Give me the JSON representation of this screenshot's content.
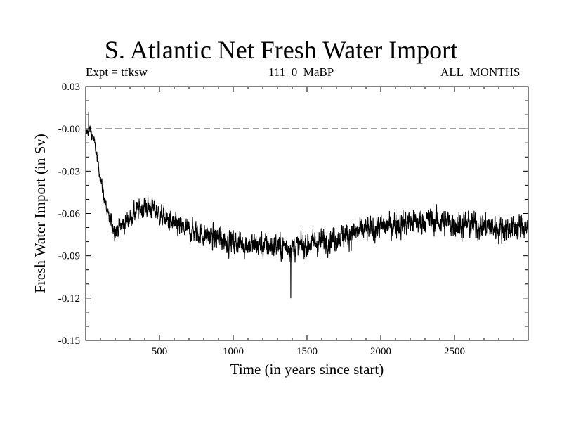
{
  "chart_data": {
    "type": "line",
    "title": "S. Atlantic Net Fresh Water Import",
    "subtitle_left": "Expt = tfksw",
    "subtitle_center": "111_0_MaBP",
    "subtitle_right": "ALL_MONTHS",
    "xlabel": "Time (in years since start)",
    "ylabel": "Fresh Water Import (in Sv)",
    "xlim": [
      0,
      3000
    ],
    "ylim": [
      -0.15,
      0.03
    ],
    "xticks": [
      500,
      1000,
      1500,
      2000,
      2500
    ],
    "xtick_labels": [
      "500",
      "1000",
      "1500",
      "2000",
      "2500"
    ],
    "yticks": [
      0.03,
      0.0,
      -0.03,
      -0.06,
      -0.09,
      -0.12,
      -0.15
    ],
    "ytick_labels": [
      "0.03",
      "-0.00",
      "-0.03",
      "-0.06",
      "-0.09",
      "-0.12",
      "-0.15"
    ],
    "reference_line": {
      "y": 0.0,
      "style": "dashed"
    },
    "series": [
      {
        "name": "Net Fresh Water Import",
        "mean_trend": {
          "x": [
            0,
            30,
            60,
            100,
            150,
            200,
            250,
            300,
            350,
            400,
            450,
            500,
            600,
            700,
            800,
            900,
            1000,
            1100,
            1200,
            1300,
            1400,
            1500,
            1600,
            1700,
            1800,
            1900,
            2000,
            2100,
            2200,
            2300,
            2400,
            2500,
            2600,
            2700,
            2800,
            2900,
            3000
          ],
          "y": [
            -0.003,
            0.0,
            -0.01,
            -0.035,
            -0.062,
            -0.072,
            -0.068,
            -0.063,
            -0.058,
            -0.055,
            -0.056,
            -0.061,
            -0.068,
            -0.072,
            -0.075,
            -0.078,
            -0.08,
            -0.082,
            -0.083,
            -0.083,
            -0.084,
            -0.082,
            -0.08,
            -0.077,
            -0.074,
            -0.072,
            -0.07,
            -0.068,
            -0.066,
            -0.065,
            -0.066,
            -0.067,
            -0.068,
            -0.069,
            -0.07,
            -0.07,
            -0.069
          ]
        },
        "noise_amplitude": {
          "x": [
            0,
            100,
            200,
            500,
            1000,
            1500,
            2000,
            2500,
            3000
          ],
          "a": [
            0.004,
            0.005,
            0.008,
            0.009,
            0.011,
            0.011,
            0.011,
            0.012,
            0.011
          ]
        },
        "approx_min": {
          "x": 1390,
          "y": -0.12
        },
        "approx_max": {
          "x": 20,
          "y": 0.012
        }
      }
    ]
  }
}
